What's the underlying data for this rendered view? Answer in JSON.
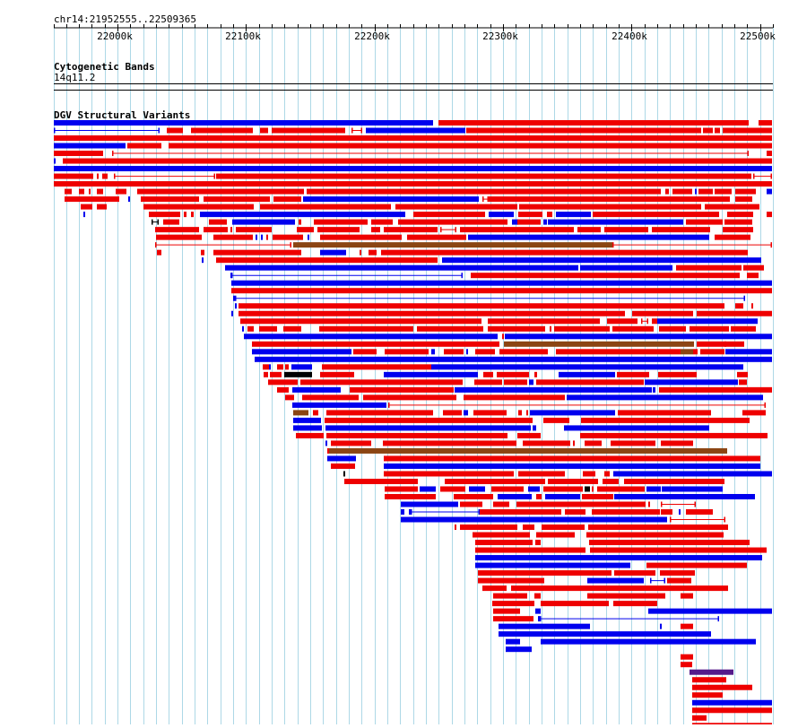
{
  "region": {
    "label": "chr14:21952555..22509365",
    "start": 21952555,
    "end": 22509365
  },
  "ruler": {
    "ticks": [
      "22000k",
      "22100k",
      "22200k",
      "22300k",
      "22400k",
      "22500k"
    ]
  },
  "tracks": {
    "cytoband": {
      "title": "Cytogenetic Bands",
      "band_label": "14q11.2"
    },
    "dgv": {
      "title": "DGV Structural Variants"
    }
  },
  "colors": {
    "loss": "#ee0000",
    "gain": "#0000ee",
    "gain_loss": "#8b4513",
    "inversion": "#000000",
    "other": "#551a8b",
    "grid": "#add8e6"
  }
}
